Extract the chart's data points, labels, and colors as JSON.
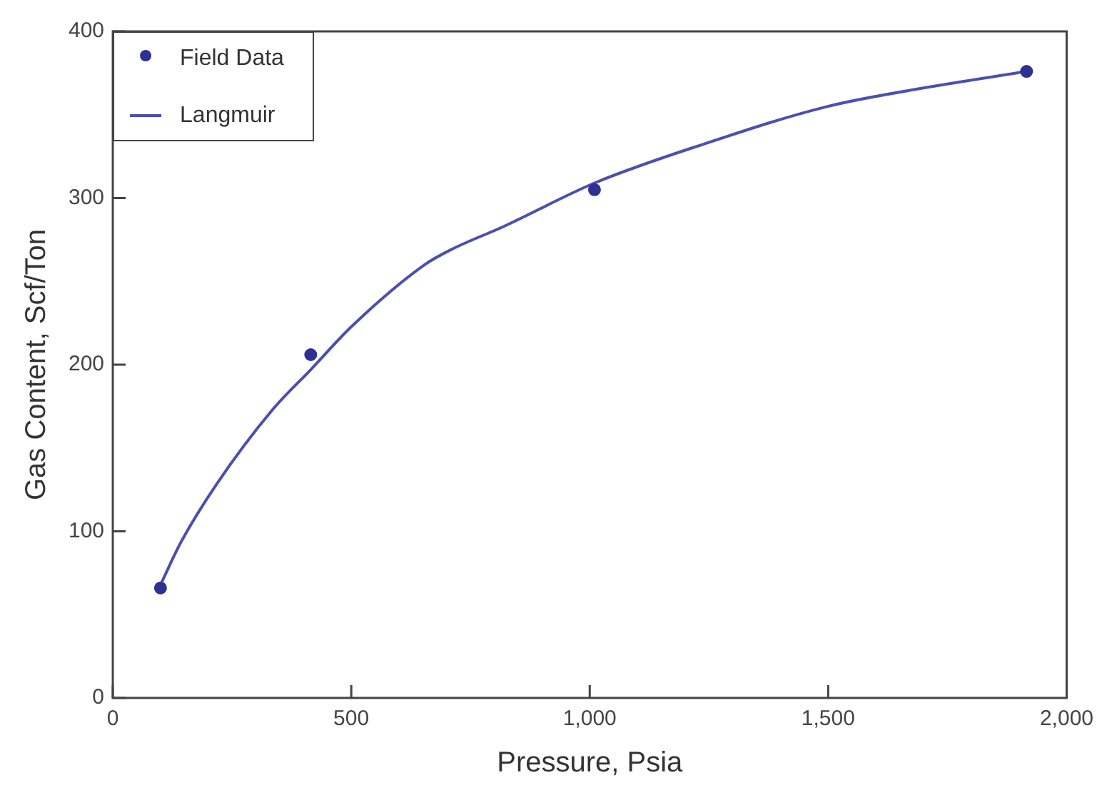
{
  "chart_data": {
    "type": "scatter",
    "xlabel": "Pressure, Psia",
    "ylabel": "Gas Content, Scf/Ton",
    "series": [
      {
        "name": "Field Data",
        "color": "#2e3192",
        "x": [
          100,
          415,
          1010,
          1916
        ],
        "values": [
          66,
          206,
          305,
          376
        ],
        "marker": "circle"
      },
      {
        "name": "Langmuir",
        "type": "line",
        "color": "#4b4fb0",
        "x": [
          97,
          142,
          217,
          335,
          415,
          501,
          654,
          709,
          820,
          1010,
          1235,
          1499,
          1720,
          1916
        ],
        "values": [
          66,
          93,
          128,
          173,
          197,
          223,
          260,
          269,
          283,
          309,
          332,
          355,
          367,
          376
        ],
        "marker": "none"
      }
    ],
    "xlim": [
      0,
      2000
    ],
    "xticks": [
      0,
      {
        "value": 500,
        "label": "500"
      },
      {
        "value": 1000,
        "label": "1,000"
      },
      {
        "value": 1500,
        "label": "1,500"
      },
      {
        "value": 2000,
        "label": "2,000"
      }
    ],
    "ylim": [
      0,
      400
    ],
    "yticks": [
      0,
      100,
      200,
      300,
      400
    ],
    "grid": false,
    "legend": "top left"
  }
}
